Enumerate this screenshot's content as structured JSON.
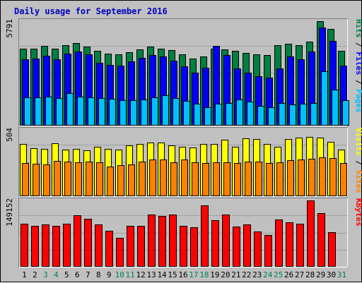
{
  "chart_data": {
    "type": "bar",
    "title": "Daily usage for September 2016",
    "categories": [
      "1",
      "2",
      "3",
      "4",
      "5",
      "6",
      "7",
      "8",
      "9",
      "10",
      "11",
      "12",
      "13",
      "14",
      "15",
      "16",
      "17",
      "18",
      "19",
      "20",
      "21",
      "22",
      "23",
      "24",
      "25",
      "26",
      "27",
      "28",
      "29",
      "30",
      "31"
    ],
    "weekend_days": [
      "3",
      "4",
      "10",
      "11",
      "17",
      "18",
      "24",
      "25",
      "31"
    ],
    "panels": [
      {
        "name": "hits-files-pages",
        "ymax_label": "5791",
        "ylim": [
          0,
          5791
        ],
        "side_labels": [
          "Hits",
          "Files",
          "Pages"
        ],
        "series": [
          {
            "name": "Hits",
            "color": "#008040",
            "values": [
              4240,
              4220,
              4390,
              4250,
              4430,
              4530,
              4370,
              4120,
              3980,
              3940,
              4060,
              4200,
              4370,
              4220,
              4170,
              3910,
              3690,
              3810,
              4250,
              4200,
              4120,
              4020,
              3930,
              3880,
              4420,
              4500,
              4430,
              4610,
              5750,
              5340,
              4120
            ]
          },
          {
            "name": "Files",
            "color": "#0000ff",
            "values": [
              3650,
              3680,
              3850,
              3660,
              3950,
              4070,
              3920,
              3440,
              3350,
              3290,
              3520,
              3740,
              3890,
              3810,
              3570,
              3250,
              2930,
              3170,
              4390,
              3900,
              3130,
              2930,
              2730,
              2660,
              3150,
              3820,
              3640,
              4100,
              5410,
              4650,
              3290
            ]
          },
          {
            "name": "Pages",
            "color": "#00c0ff",
            "values": [
              1560,
              1570,
              1600,
              1530,
              1800,
              1600,
              1540,
              1520,
              1460,
              1380,
              1410,
              1430,
              1540,
              1670,
              1510,
              1370,
              1190,
              1020,
              1200,
              1240,
              1440,
              1320,
              1070,
              1010,
              1230,
              1150,
              1200,
              1240,
              3000,
              2000,
              1380
            ]
          }
        ]
      },
      {
        "name": "visits-sites",
        "ymax_label": "504",
        "ylim": [
          0,
          504
        ],
        "side_labels": [
          "Visits",
          "Sites"
        ],
        "series": [
          {
            "name": "Visits",
            "color": "#ffff00",
            "values": [
              390,
              360,
              356,
              400,
              350,
              355,
              345,
              370,
              353,
              352,
              380,
              390,
              404,
              404,
              384,
              372,
              367,
              390,
              390,
              427,
              370,
              436,
              432,
              390,
              371,
              428,
              440,
              443,
              442,
              410,
              350
            ]
          },
          {
            "name": "Sites",
            "color": "#ff8000",
            "values": [
              250,
              245,
              237,
              265,
              261,
              255,
              258,
              256,
              222,
              235,
              239,
              262,
              275,
              277,
              256,
              276,
              255,
              250,
              256,
              256,
              250,
              258,
              258,
              250,
              257,
              269,
              275,
              281,
              294,
              284,
              249
            ]
          }
        ]
      },
      {
        "name": "kbytes",
        "ymax_label": "149152",
        "ylim": [
          0,
          149152
        ],
        "side_labels": [
          "KBytes"
        ],
        "series": [
          {
            "name": "KBytes",
            "color": "#ff0000",
            "values": [
              96000,
              91000,
              93800,
              91000,
              95500,
              114600,
              107400,
              94500,
              80800,
              65000,
              90500,
              91200,
              115800,
              113200,
              115900,
              91500,
              87200,
              136700,
              103800,
              116700,
              88800,
              94000,
              79200,
              70300,
              104700,
              98500,
              95100,
              147300,
              119000,
              77000,
              0
            ]
          }
        ]
      }
    ]
  }
}
